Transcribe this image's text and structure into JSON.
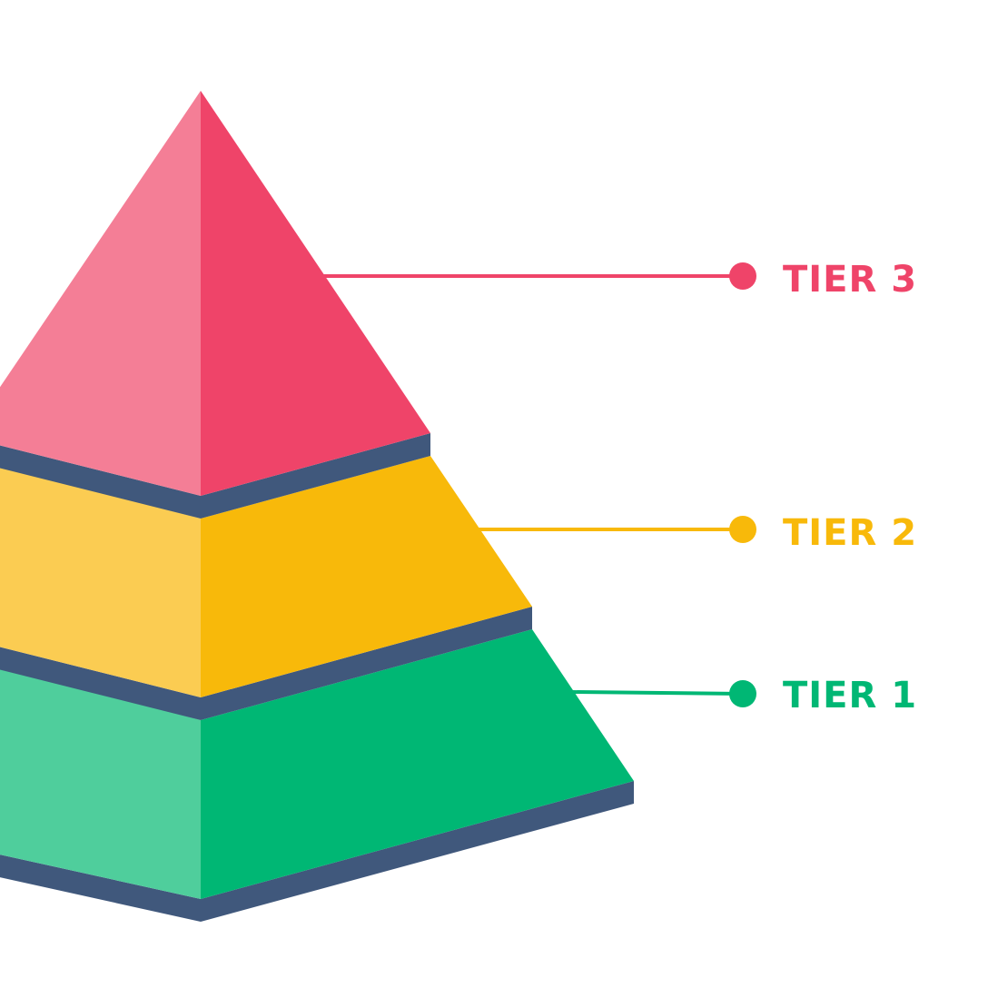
{
  "colors": {
    "tier3_light": "#F47E96",
    "tier3_dark": "#EF4469",
    "tier2_light": "#FBCC52",
    "tier2_dark": "#F8B90A",
    "tier1_light": "#4FCE9C",
    "tier1_dark": "#00B774",
    "edge": "#40587C",
    "background": "#FFFFFF"
  },
  "tiers": [
    {
      "id": "tier-3",
      "label": "TIER 3",
      "color": "#EF4469"
    },
    {
      "id": "tier-2",
      "label": "TIER 2",
      "color": "#F8B90A"
    },
    {
      "id": "tier-1",
      "label": "TIER 1",
      "color": "#00B774"
    }
  ]
}
